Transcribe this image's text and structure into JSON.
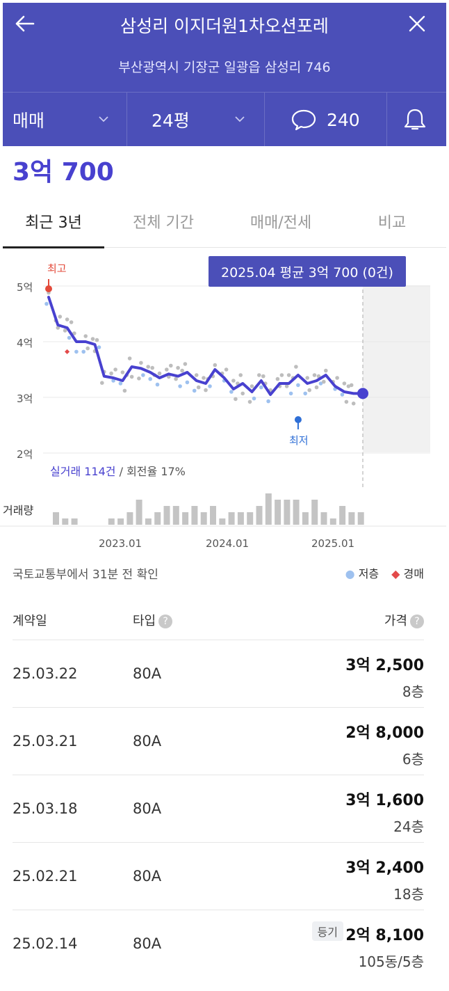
{
  "header": {
    "title": "삼성리 이지더원1차오션포레",
    "address": "부산광역시 기장군 일광읍 삼성리 746",
    "trade_type": "매매",
    "area": "24평",
    "comment_count": "240"
  },
  "price": {
    "current": "3억 700"
  },
  "period_tabs": [
    "최근 3년",
    "전체 기간",
    "매매/전세",
    "비교"
  ],
  "tooltip": "2025.04 평균 3억 700 (0건)",
  "chart_labels": {
    "high": "최고",
    "low": "최저",
    "volume": "거래량",
    "stats_prefix": "실거래 114건",
    "stats_suffix": " / 회전율 17%"
  },
  "chart_data": {
    "type": "line",
    "y_ticks": [
      "5억",
      "4억",
      "3억",
      "2억"
    ],
    "x_ticks": [
      "2023.01",
      "2024.01",
      "2025.01"
    ],
    "ylim": [
      2.0,
      5.0
    ],
    "y_unit": "억",
    "series": [
      {
        "name": "",
        "x": [
          "2022-06",
          "2022-07",
          "2022-08",
          "2022-09",
          "2022-10",
          "2022-11",
          "2022-12",
          "2023-01",
          "2023-02",
          "2023-03",
          "2023-04",
          "2023-05",
          "2023-06",
          "2023-07",
          "2023-08",
          "2023-09",
          "2023-10",
          "2023-11",
          "2023-12",
          "2024-01",
          "2024-02",
          "2024-03",
          "2024-04",
          "2024-05",
          "2024-06",
          "2024-07",
          "2024-08",
          "2024-09",
          "2024-10",
          "2024-11",
          "2024-12",
          "2025-01",
          "2025-02",
          "2025-03",
          "2025-04"
        ],
        "values": [
          4.8,
          4.3,
          4.25,
          4.0,
          4.0,
          3.95,
          3.38,
          3.35,
          3.3,
          3.55,
          3.52,
          3.45,
          3.35,
          3.42,
          3.38,
          3.45,
          3.3,
          3.25,
          3.5,
          3.35,
          3.15,
          3.25,
          3.1,
          3.3,
          3.05,
          3.25,
          3.25,
          3.4,
          3.25,
          3.3,
          3.4,
          3.2,
          3.1,
          3.07,
          3.07
        ]
      }
    ],
    "high": {
      "x": "2022-06",
      "value": 4.95
    },
    "low": {
      "x": "2024-09",
      "value": 2.6
    },
    "volume": [
      2,
      1,
      1,
      0,
      0,
      0,
      1,
      1,
      2,
      4,
      1,
      2,
      3,
      3,
      2,
      3,
      2,
      3,
      1,
      2,
      2,
      2,
      3,
      5,
      4,
      4,
      4,
      2,
      4,
      2,
      1,
      3,
      2,
      2,
      0
    ]
  },
  "source": {
    "updated": "국토교통부에서 31분 전 확인",
    "legend_low_floor": "저층",
    "legend_auction": "경매"
  },
  "table": {
    "headers": {
      "date": "계약일",
      "type": "타입",
      "price": "가격"
    },
    "rows": [
      {
        "date": "25.03.22",
        "type": "80A",
        "price": "3억 2,500",
        "floor": "8층",
        "badge": ""
      },
      {
        "date": "25.03.21",
        "type": "80A",
        "price": "2억 8,000",
        "floor": "6층",
        "badge": ""
      },
      {
        "date": "25.03.18",
        "type": "80A",
        "price": "3억 1,600",
        "floor": "24층",
        "badge": ""
      },
      {
        "date": "25.02.21",
        "type": "80A",
        "price": "3억 2,400",
        "floor": "18층",
        "badge": ""
      },
      {
        "date": "25.02.14",
        "type": "80A",
        "price": "2억 8,100",
        "floor": "105동/5층",
        "badge": "등기"
      }
    ]
  },
  "colors": {
    "brand": "#4b4fb8",
    "line": "#4841cf",
    "high": "#e34a3a",
    "low": "#2f6fd6",
    "low_floor_dot": "#9ec1ef",
    "auction": "#e34a4a"
  }
}
